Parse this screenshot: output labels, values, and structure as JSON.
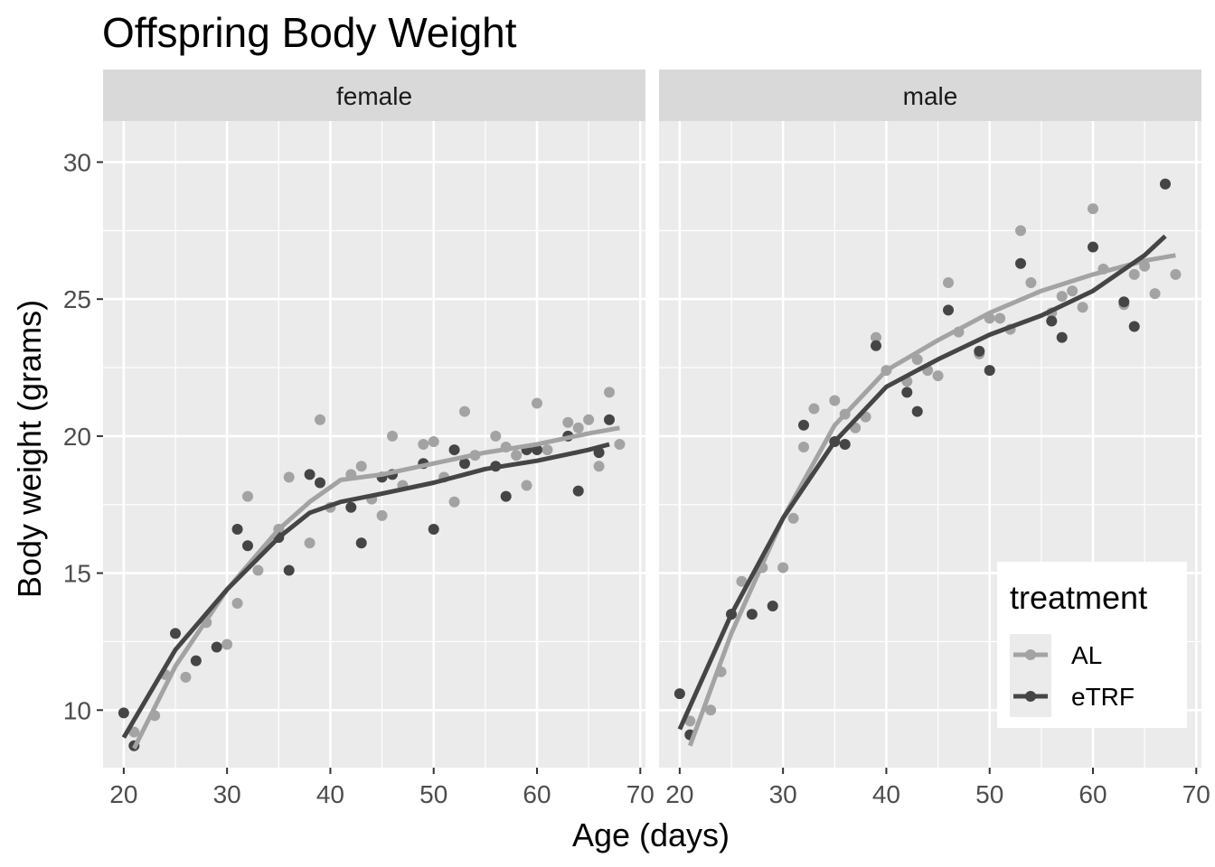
{
  "chart_data": {
    "type": "scatter",
    "title": "Offspring Body Weight",
    "xlabel": "Age (days)",
    "ylabel": "Body weight (grams)",
    "xlim": [
      18,
      70.5
    ],
    "ylim": [
      7.9,
      31.5
    ],
    "x_ticks": [
      20,
      30,
      40,
      50,
      60,
      70
    ],
    "y_ticks": [
      10,
      15,
      20,
      25,
      30
    ],
    "grid": true,
    "legend": {
      "title": "treatment",
      "position": "bottom-right inside male panel"
    },
    "colors": {
      "AL": "#a3a3a3",
      "eTRF": "#454545",
      "panel_bg": "#ebebeb",
      "strip_bg": "#d9d9d9"
    },
    "series_names": [
      "AL",
      "eTRF"
    ],
    "panels": [
      {
        "label": "female",
        "points": {
          "AL": [
            [
              21,
              9.2
            ],
            [
              23,
              9.8
            ],
            [
              24,
              11.3
            ],
            [
              26,
              11.2
            ],
            [
              28,
              13.2
            ],
            [
              30,
              12.4
            ],
            [
              31,
              13.9
            ],
            [
              32,
              17.8
            ],
            [
              33,
              15.1
            ],
            [
              35,
              16.6
            ],
            [
              36,
              18.5
            ],
            [
              38,
              16.1
            ],
            [
              39,
              20.6
            ],
            [
              40,
              17.4
            ],
            [
              42,
              18.6
            ],
            [
              43,
              18.9
            ],
            [
              44,
              17.7
            ],
            [
              45,
              17.1
            ],
            [
              46,
              20.0
            ],
            [
              47,
              18.2
            ],
            [
              49,
              19.7
            ],
            [
              50,
              19.8
            ],
            [
              51,
              18.5
            ],
            [
              52,
              17.6
            ],
            [
              53,
              20.9
            ],
            [
              54,
              19.3
            ],
            [
              56,
              20.0
            ],
            [
              57,
              19.6
            ],
            [
              58,
              19.3
            ],
            [
              59,
              18.2
            ],
            [
              60,
              21.2
            ],
            [
              61,
              19.5
            ],
            [
              63,
              20.5
            ],
            [
              64,
              20.3
            ],
            [
              65,
              20.6
            ],
            [
              66,
              18.9
            ],
            [
              67,
              21.6
            ],
            [
              68,
              19.7
            ]
          ],
          "eTRF": [
            [
              20,
              9.9
            ],
            [
              21,
              8.7
            ],
            [
              25,
              12.8
            ],
            [
              27,
              11.8
            ],
            [
              29,
              12.3
            ],
            [
              31,
              16.6
            ],
            [
              32,
              16.0
            ],
            [
              35,
              16.3
            ],
            [
              36,
              15.1
            ],
            [
              38,
              18.6
            ],
            [
              39,
              18.3
            ],
            [
              42,
              17.4
            ],
            [
              43,
              16.1
            ],
            [
              45,
              18.5
            ],
            [
              46,
              18.6
            ],
            [
              49,
              19.0
            ],
            [
              50,
              16.6
            ],
            [
              52,
              19.5
            ],
            [
              53,
              19.0
            ],
            [
              56,
              18.9
            ],
            [
              57,
              17.8
            ],
            [
              59,
              19.5
            ],
            [
              60,
              19.5
            ],
            [
              63,
              20.0
            ],
            [
              64,
              18.0
            ],
            [
              66,
              19.4
            ],
            [
              67,
              20.6
            ]
          ]
        },
        "smooth": {
          "AL": [
            [
              21,
              8.6
            ],
            [
              25,
              11.6
            ],
            [
              30,
              14.4
            ],
            [
              35,
              16.6
            ],
            [
              38,
              17.6
            ],
            [
              41,
              18.4
            ],
            [
              45,
              18.6
            ],
            [
              50,
              19.0
            ],
            [
              55,
              19.4
            ],
            [
              60,
              19.7
            ],
            [
              65,
              20.1
            ],
            [
              68,
              20.3
            ]
          ],
          "eTRF": [
            [
              20,
              9.0
            ],
            [
              25,
              12.2
            ],
            [
              30,
              14.4
            ],
            [
              35,
              16.3
            ],
            [
              38,
              17.2
            ],
            [
              41,
              17.6
            ],
            [
              45,
              17.9
            ],
            [
              50,
              18.3
            ],
            [
              55,
              18.8
            ],
            [
              60,
              19.1
            ],
            [
              65,
              19.5
            ],
            [
              67,
              19.7
            ]
          ]
        }
      },
      {
        "label": "male",
        "points": {
          "AL": [
            [
              21,
              9.6
            ],
            [
              23,
              10.0
            ],
            [
              24,
              11.4
            ],
            [
              26,
              14.7
            ],
            [
              28,
              15.2
            ],
            [
              30,
              15.2
            ],
            [
              31,
              17.0
            ],
            [
              32,
              19.6
            ],
            [
              33,
              21.0
            ],
            [
              35,
              21.3
            ],
            [
              36,
              20.8
            ],
            [
              37,
              20.3
            ],
            [
              38,
              20.7
            ],
            [
              39,
              23.6
            ],
            [
              40,
              22.4
            ],
            [
              42,
              22.0
            ],
            [
              43,
              22.8
            ],
            [
              44,
              22.4
            ],
            [
              45,
              22.2
            ],
            [
              46,
              25.6
            ],
            [
              47,
              23.8
            ],
            [
              49,
              23.0
            ],
            [
              50,
              24.3
            ],
            [
              51,
              24.3
            ],
            [
              52,
              23.9
            ],
            [
              53,
              27.5
            ],
            [
              54,
              25.6
            ],
            [
              56,
              24.5
            ],
            [
              57,
              25.1
            ],
            [
              58,
              25.3
            ],
            [
              59,
              24.7
            ],
            [
              60,
              28.3
            ],
            [
              61,
              26.1
            ],
            [
              63,
              24.8
            ],
            [
              64,
              25.9
            ],
            [
              65,
              26.2
            ],
            [
              66,
              25.2
            ],
            [
              67,
              29.2
            ],
            [
              68,
              25.9
            ]
          ],
          "eTRF": [
            [
              20,
              10.6
            ],
            [
              21,
              9.1
            ],
            [
              25,
              13.5
            ],
            [
              27,
              13.5
            ],
            [
              29,
              13.8
            ],
            [
              32,
              20.4
            ],
            [
              35,
              19.8
            ],
            [
              36,
              19.7
            ],
            [
              39,
              23.3
            ],
            [
              42,
              21.6
            ],
            [
              43,
              20.9
            ],
            [
              46,
              24.6
            ],
            [
              49,
              23.1
            ],
            [
              50,
              22.4
            ],
            [
              53,
              26.3
            ],
            [
              56,
              24.2
            ],
            [
              57,
              23.6
            ],
            [
              60,
              26.9
            ],
            [
              63,
              24.9
            ],
            [
              64,
              24.0
            ],
            [
              67,
              29.2
            ]
          ]
        },
        "smooth": {
          "AL": [
            [
              21,
              8.7
            ],
            [
              25,
              12.8
            ],
            [
              30,
              17.0
            ],
            [
              35,
              20.4
            ],
            [
              40,
              22.4
            ],
            [
              45,
              23.5
            ],
            [
              50,
              24.5
            ],
            [
              55,
              25.3
            ],
            [
              60,
              25.9
            ],
            [
              65,
              26.4
            ],
            [
              68,
              26.6
            ]
          ],
          "eTRF": [
            [
              20,
              9.3
            ],
            [
              25,
              13.5
            ],
            [
              30,
              17.0
            ],
            [
              35,
              19.8
            ],
            [
              40,
              21.8
            ],
            [
              45,
              22.8
            ],
            [
              50,
              23.7
            ],
            [
              55,
              24.4
            ],
            [
              60,
              25.3
            ],
            [
              65,
              26.6
            ],
            [
              67,
              27.3
            ]
          ]
        }
      }
    ]
  }
}
